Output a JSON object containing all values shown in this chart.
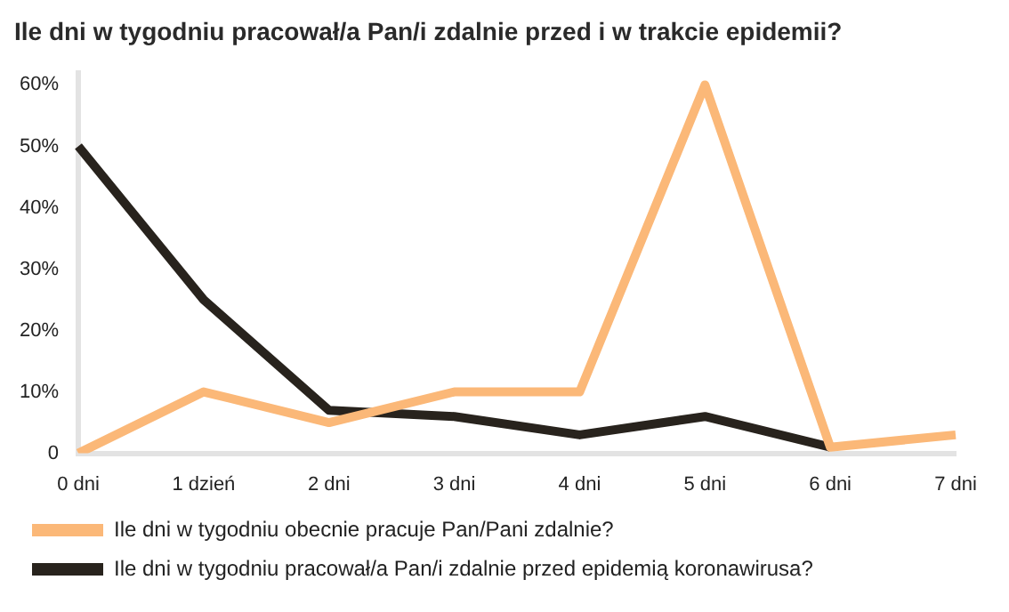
{
  "chart_data": {
    "type": "line",
    "title": "Ile dni w tygodniu pracował/a Pan/i zdalnie przed i w trakcie epidemii?",
    "categories": [
      "0 dni",
      "1 dzień",
      "2 dni",
      "3 dni",
      "4 dni",
      "5 dni",
      "6 dni",
      "7 dni"
    ],
    "series": [
      {
        "name": "Ile dni w tygodniu obecnie pracuje Pan/Pani zdalnie?",
        "color": "#fbb878",
        "values": [
          0,
          10,
          5,
          10,
          10,
          60,
          1,
          3
        ]
      },
      {
        "name": "Ile dni w tygodniu pracował/a Pan/i zdalnie przed epidemią koronawirusa?",
        "color": "#28231d",
        "values": [
          50,
          25,
          7,
          6,
          3,
          6,
          1,
          null
        ]
      }
    ],
    "ylim": [
      0,
      62
    ],
    "yticks": [
      0,
      {
        "value": 10,
        "label": "10%"
      },
      {
        "value": 20,
        "label": "20%"
      },
      {
        "value": 30,
        "label": "30%"
      },
      {
        "value": 40,
        "label": "40%"
      },
      {
        "value": 50,
        "label": "50%"
      },
      {
        "value": 60,
        "label": "60%"
      }
    ],
    "grid": false,
    "legend": "bottom",
    "marker": "none",
    "line_style": "solid"
  }
}
